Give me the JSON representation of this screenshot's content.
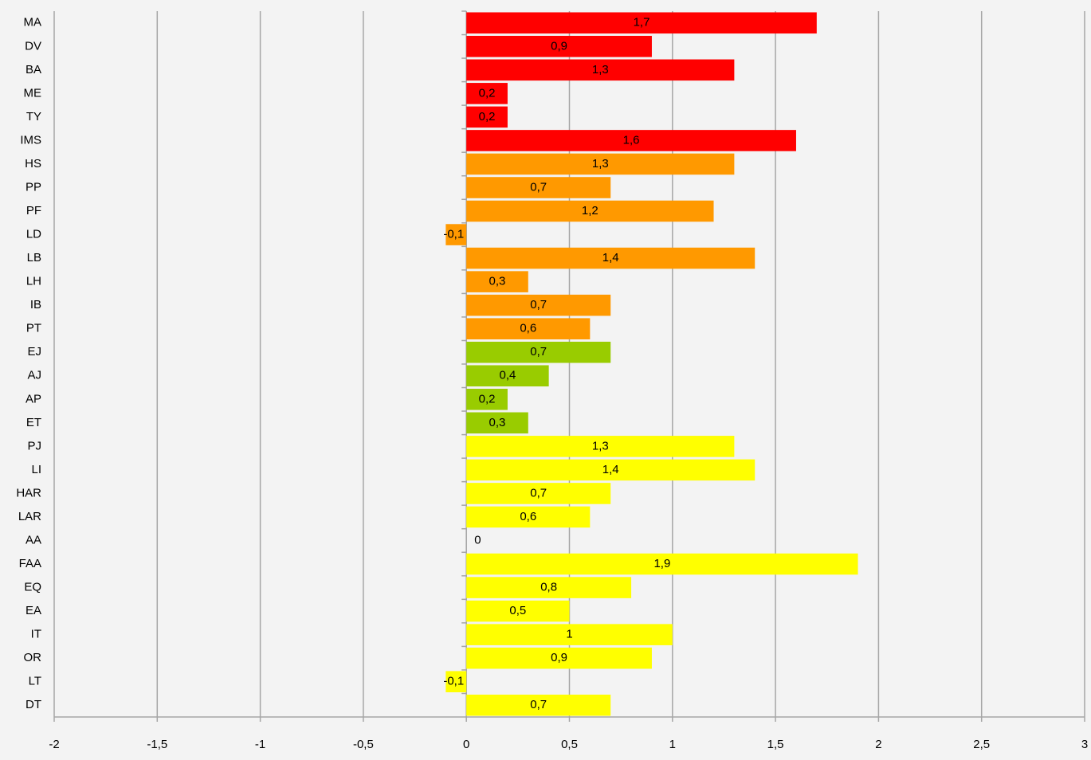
{
  "chart_data": {
    "type": "bar",
    "orientation": "horizontal",
    "categories": [
      "MA",
      "DV",
      "BA",
      "ME",
      "TY",
      "IMS",
      "HS",
      "PP",
      "PF",
      "LD",
      "LB",
      "LH",
      "IB",
      "PT",
      "EJ",
      "AJ",
      "AP",
      "ET",
      "PJ",
      "LI",
      "HAR",
      "LAR",
      "AA",
      "FAA",
      "EQ",
      "EA",
      "IT",
      "OR",
      "LT",
      "DT"
    ],
    "values": [
      1.7,
      0.9,
      1.3,
      0.2,
      0.2,
      1.6,
      1.3,
      0.7,
      1.2,
      -0.1,
      1.4,
      0.3,
      0.7,
      0.6,
      0.7,
      0.4,
      0.2,
      0.3,
      1.3,
      1.4,
      0.7,
      0.6,
      0,
      1.9,
      0.8,
      0.5,
      1,
      0.9,
      -0.1,
      0.7
    ],
    "value_labels": [
      "1,7",
      "0,9",
      "1,3",
      "0,2",
      "0,2",
      "1,6",
      "1,3",
      "0,7",
      "1,2",
      "-0,1",
      "1,4",
      "0,3",
      "0,7",
      "0,6",
      "0,7",
      "0,4",
      "0,2",
      "0,3",
      "1,3",
      "1,4",
      "0,7",
      "0,6",
      "0",
      "1,9",
      "0,8",
      "0,5",
      "1",
      "0,9",
      "-0,1",
      "0,7"
    ],
    "colors": [
      "#ff0000",
      "#ff0000",
      "#ff0000",
      "#ff0000",
      "#ff0000",
      "#ff0000",
      "#ff9900",
      "#ff9900",
      "#ff9900",
      "#ff9900",
      "#ff9900",
      "#ff9900",
      "#ff9900",
      "#ff9900",
      "#99cc00",
      "#99cc00",
      "#99cc00",
      "#99cc00",
      "#ffff00",
      "#ffff00",
      "#ffff00",
      "#ffff00",
      "#ffff00",
      "#ffff00",
      "#ffff00",
      "#ffff00",
      "#ffff00",
      "#ffff00",
      "#ffff00",
      "#ffff00"
    ],
    "xlim": [
      -2,
      3
    ],
    "xticks": [
      -2,
      {
        "value": -1.5,
        "label": "-1,5"
      },
      -1,
      {
        "value": -0.5,
        "label": "-0,5"
      },
      0,
      {
        "value": 0.5,
        "label": "0,5"
      },
      1,
      {
        "value": 1.5,
        "label": "1,5"
      },
      2,
      {
        "value": 2.5,
        "label": "2,5"
      },
      3
    ],
    "grid": true
  }
}
